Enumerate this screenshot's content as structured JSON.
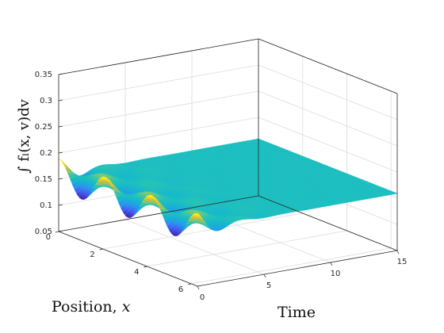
{
  "chart_data": {
    "type": "surface",
    "x_axis": {
      "label_text": "Position, ",
      "label_var": "x",
      "ticks": [
        "0",
        "2",
        "4",
        "6"
      ],
      "range": [
        0,
        6.28
      ]
    },
    "time_axis": {
      "label": "Time",
      "ticks": [
        "0",
        "5",
        "10",
        "15"
      ],
      "range": [
        0,
        15
      ]
    },
    "z_axis": {
      "label": "∫ fₗ(x, v)dv",
      "ticks": [
        "0.05",
        "0.1",
        "0.15",
        "0.2",
        "0.25",
        "0.3",
        "0.35"
      ],
      "range": [
        0.05,
        0.35
      ]
    },
    "colormap": "parula",
    "grid": true,
    "surface_description": {
      "steady_state_level": 0.159,
      "initial_profile_amplitude": 0.03,
      "initial_profile_wavenumber": 3,
      "decay_time_scale": 1.5
    }
  }
}
